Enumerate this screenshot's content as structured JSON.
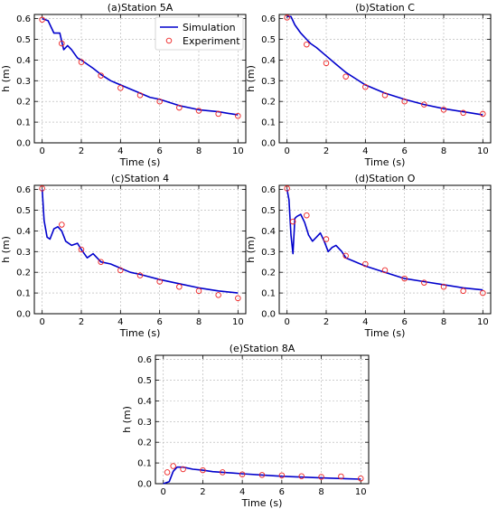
{
  "colors": {
    "simulation": "#0000cc",
    "experiment": "#ee2222",
    "grid": "#b0b0b0",
    "axes": "#000000"
  },
  "legend": {
    "simulation_label": "Simulation",
    "experiment_label": "Experiment",
    "placement": "top-right of panel (a)"
  },
  "chart_data": [
    {
      "type": "line",
      "title": "(a)Station 5A",
      "xlabel": "Time (s)",
      "ylabel": "h (m)",
      "xlim": [
        -0.4,
        10.4
      ],
      "ylim": [
        0,
        0.62
      ],
      "xticks": [
        0,
        2,
        4,
        6,
        8,
        10
      ],
      "yticks": [
        0.0,
        0.1,
        0.2,
        0.3,
        0.4,
        0.5,
        0.6
      ],
      "grid": true,
      "series": [
        {
          "name": "Simulation",
          "style": "line",
          "x": [
            0,
            0.3,
            0.6,
            0.9,
            1.1,
            1.3,
            1.5,
            1.8,
            2.0,
            2.3,
            2.6,
            3.0,
            3.5,
            4.0,
            4.5,
            5.0,
            5.5,
            6.0,
            7.0,
            8.0,
            9.0,
            10.0
          ],
          "y": [
            0.6,
            0.59,
            0.53,
            0.53,
            0.45,
            0.47,
            0.45,
            0.41,
            0.4,
            0.38,
            0.36,
            0.33,
            0.3,
            0.28,
            0.26,
            0.24,
            0.22,
            0.21,
            0.18,
            0.16,
            0.15,
            0.135
          ]
        },
        {
          "name": "Experiment",
          "style": "marker",
          "x": [
            0,
            1,
            2,
            3,
            4,
            5,
            6,
            7,
            8,
            9,
            10
          ],
          "y": [
            0.595,
            0.48,
            0.39,
            0.325,
            0.265,
            0.23,
            0.2,
            0.17,
            0.155,
            0.14,
            0.13
          ]
        }
      ]
    },
    {
      "type": "line",
      "title": "(b)Station C",
      "xlabel": "Time (s)",
      "ylabel": "h (m)",
      "xlim": [
        -0.4,
        10.4
      ],
      "ylim": [
        0,
        0.62
      ],
      "xticks": [
        0,
        2,
        4,
        6,
        8,
        10
      ],
      "yticks": [
        0.0,
        0.1,
        0.2,
        0.3,
        0.4,
        0.5,
        0.6
      ],
      "grid": true,
      "series": [
        {
          "name": "Simulation",
          "style": "line",
          "x": [
            0,
            0.2,
            0.4,
            0.7,
            1.0,
            1.2,
            1.5,
            2.0,
            2.5,
            3.0,
            3.5,
            4.0,
            4.5,
            5.0,
            6.0,
            7.0,
            8.0,
            9.0,
            10.0
          ],
          "y": [
            0.61,
            0.61,
            0.57,
            0.53,
            0.5,
            0.48,
            0.46,
            0.42,
            0.38,
            0.34,
            0.31,
            0.28,
            0.26,
            0.24,
            0.21,
            0.185,
            0.165,
            0.15,
            0.135
          ]
        },
        {
          "name": "Experiment",
          "style": "marker",
          "x": [
            0,
            1,
            2,
            3,
            4,
            5,
            6,
            7,
            8,
            9,
            10
          ],
          "y": [
            0.605,
            0.475,
            0.385,
            0.32,
            0.27,
            0.23,
            0.2,
            0.185,
            0.16,
            0.145,
            0.14
          ]
        }
      ]
    },
    {
      "type": "line",
      "title": "(c)Station 4",
      "xlabel": "Time (s)",
      "ylabel": "h (m)",
      "xlim": [
        -0.4,
        10.4
      ],
      "ylim": [
        0,
        0.62
      ],
      "xticks": [
        0,
        2,
        4,
        6,
        8,
        10
      ],
      "yticks": [
        0.0,
        0.1,
        0.2,
        0.3,
        0.4,
        0.5,
        0.6
      ],
      "grid": true,
      "series": [
        {
          "name": "Simulation",
          "style": "line",
          "x": [
            0,
            0.1,
            0.25,
            0.4,
            0.6,
            0.8,
            1.0,
            1.2,
            1.5,
            1.8,
            2.0,
            2.3,
            2.6,
            3.0,
            3.5,
            4.0,
            4.5,
            5.0,
            6.0,
            7.0,
            8.0,
            9.0,
            10.0
          ],
          "y": [
            0.6,
            0.45,
            0.37,
            0.36,
            0.41,
            0.42,
            0.4,
            0.35,
            0.33,
            0.34,
            0.31,
            0.27,
            0.29,
            0.25,
            0.24,
            0.22,
            0.2,
            0.19,
            0.165,
            0.145,
            0.125,
            0.11,
            0.1
          ]
        },
        {
          "name": "Experiment",
          "style": "marker",
          "x": [
            0,
            1,
            2,
            3,
            4,
            5,
            6,
            7,
            8,
            9,
            10
          ],
          "y": [
            0.605,
            0.43,
            0.31,
            0.25,
            0.21,
            0.185,
            0.155,
            0.13,
            0.11,
            0.09,
            0.075
          ]
        }
      ]
    },
    {
      "type": "line",
      "title": "(d)Station O",
      "xlabel": "Time (s)",
      "ylabel": "h (m)",
      "xlim": [
        -0.4,
        10.4
      ],
      "ylim": [
        0,
        0.62
      ],
      "xticks": [
        0,
        2,
        4,
        6,
        8,
        10
      ],
      "yticks": [
        0.0,
        0.1,
        0.2,
        0.3,
        0.4,
        0.5,
        0.6
      ],
      "grid": true,
      "series": [
        {
          "name": "Simulation",
          "style": "line",
          "x": [
            0,
            0.1,
            0.2,
            0.3,
            0.4,
            0.5,
            0.7,
            0.9,
            1.1,
            1.3,
            1.5,
            1.7,
            1.9,
            2.1,
            2.3,
            2.5,
            2.8,
            3.0,
            3.5,
            4.0,
            5.0,
            6.0,
            7.0,
            8.0,
            9.0,
            10.0
          ],
          "y": [
            0.6,
            0.55,
            0.38,
            0.29,
            0.46,
            0.47,
            0.48,
            0.44,
            0.38,
            0.35,
            0.37,
            0.39,
            0.35,
            0.3,
            0.32,
            0.33,
            0.3,
            0.27,
            0.25,
            0.23,
            0.2,
            0.17,
            0.155,
            0.14,
            0.125,
            0.115
          ]
        },
        {
          "name": "Experiment",
          "style": "marker",
          "x": [
            0,
            0.3,
            1,
            2,
            3,
            4,
            5,
            6,
            7,
            8,
            9,
            10
          ],
          "y": [
            0.605,
            0.445,
            0.475,
            0.36,
            0.28,
            0.24,
            0.21,
            0.17,
            0.15,
            0.13,
            0.11,
            0.1
          ]
        }
      ]
    },
    {
      "type": "line",
      "title": "(e)Station 8A",
      "xlabel": "Time (s)",
      "ylabel": "h (m)",
      "xlim": [
        -0.4,
        10.4
      ],
      "ylim": [
        0,
        0.62
      ],
      "xticks": [
        0,
        2,
        4,
        6,
        8,
        10
      ],
      "yticks": [
        0.0,
        0.1,
        0.2,
        0.3,
        0.4,
        0.5,
        0.6
      ],
      "grid": true,
      "series": [
        {
          "name": "Simulation",
          "style": "line",
          "x": [
            0,
            0.3,
            0.5,
            0.7,
            1.0,
            1.5,
            2.0,
            2.5,
            3.0,
            4.0,
            5.0,
            6.0,
            7.0,
            8.0,
            9.0,
            10.0
          ],
          "y": [
            0.0,
            0.01,
            0.06,
            0.08,
            0.08,
            0.07,
            0.065,
            0.058,
            0.055,
            0.048,
            0.042,
            0.036,
            0.032,
            0.028,
            0.025,
            0.022
          ]
        },
        {
          "name": "Experiment",
          "style": "marker",
          "x": [
            0.2,
            0.5,
            1,
            2,
            3,
            4,
            5,
            6,
            7,
            8,
            9,
            10
          ],
          "y": [
            0.055,
            0.085,
            0.07,
            0.065,
            0.055,
            0.045,
            0.042,
            0.04,
            0.036,
            0.033,
            0.035,
            0.025
          ]
        }
      ]
    }
  ]
}
